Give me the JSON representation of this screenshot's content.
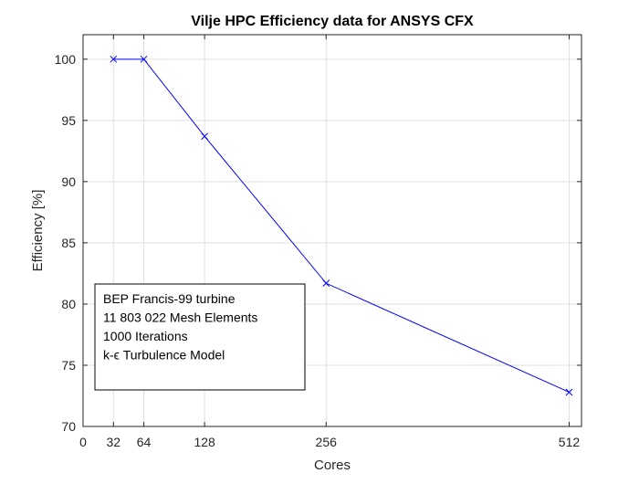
{
  "chart_data": {
    "type": "line",
    "title": "Vilje HPC Efficiency data for ANSYS CFX",
    "xlabel": "Cores",
    "ylabel": "Efficiency [%]",
    "xlim": [
      0,
      525
    ],
    "ylim": [
      70,
      102
    ],
    "xticks": [
      0,
      32,
      64,
      128,
      256,
      512
    ],
    "yticks": [
      70,
      75,
      80,
      85,
      90,
      95,
      100
    ],
    "grid": true,
    "series": [
      {
        "marker": "x",
        "color": "#0000ff",
        "x": [
          32,
          64,
          128,
          256,
          512
        ],
        "y": [
          100,
          100,
          93.7,
          81.7,
          72.8
        ]
      }
    ],
    "annotation": {
      "placement": "lower-left",
      "lines": [
        "BEP Francis-99 turbine",
        "11 803 022 Mesh Elements",
        "1000 Iterations",
        "k-ϵ Turbulence Model"
      ]
    }
  }
}
